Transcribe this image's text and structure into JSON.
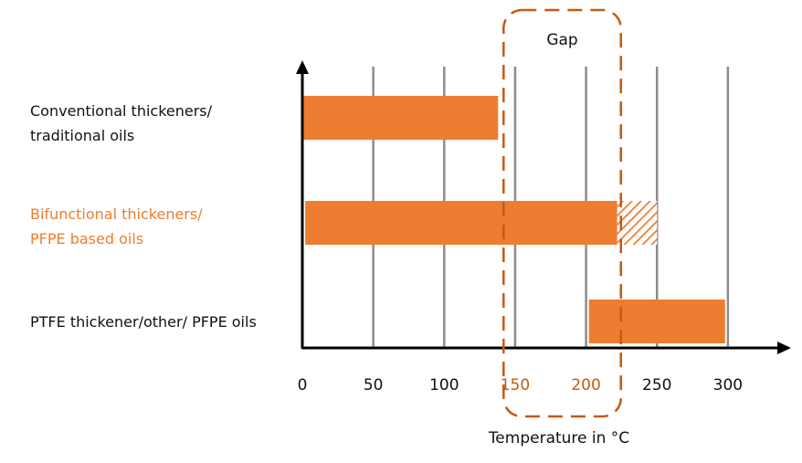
{
  "chart_data": {
    "type": "bar",
    "orientation": "horizontal",
    "xlabel": "Temperature in °C",
    "xlim": [
      0,
      340
    ],
    "xticks": [
      0,
      50,
      100,
      150,
      200,
      250,
      300
    ],
    "highlighted_ticks": [
      150,
      200
    ],
    "grid": true,
    "categories": [
      {
        "lines": [
          "Conventional thickeners/",
          "traditional oils"
        ],
        "highlight": false
      },
      {
        "lines": [
          "Bifunctional thickeners/",
          "PFPE based oils"
        ],
        "highlight": true
      },
      {
        "lines": [
          "PTFE thickener/other/ PFPE oils"
        ],
        "highlight": false
      }
    ],
    "ranges": [
      {
        "start": 0,
        "end": 138
      },
      {
        "start": 2,
        "end": 222,
        "extended_end": 250
      },
      {
        "start": 202,
        "end": 298
      }
    ],
    "annotation": {
      "label": "Gap",
      "x_start": 138,
      "x_end": 222
    },
    "colors": {
      "bar": "#ED7D31",
      "gap_border": "#C55A11",
      "highlight_text": "#ED7D31",
      "tick_highlight": "#C55A11",
      "grid": "#8C8C8C",
      "axis": "#000000"
    }
  }
}
